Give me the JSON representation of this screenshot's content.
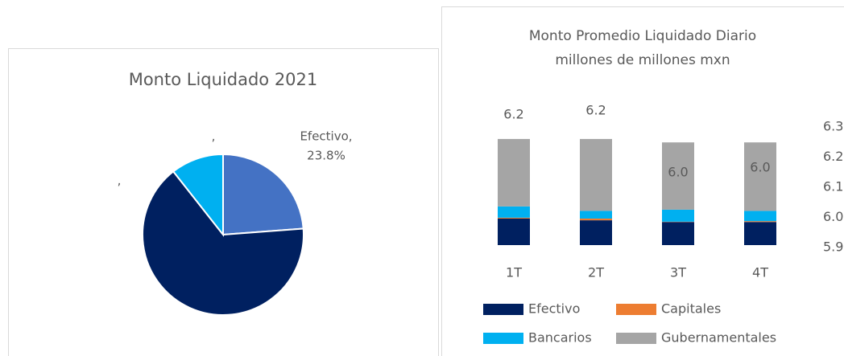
{
  "chart_data": [
    {
      "type": "pie",
      "title": "Monto Liquidado 2021",
      "categories": [
        "Efectivo",
        null,
        null
      ],
      "values": [
        23.8,
        65.6,
        10.6
      ],
      "value_labels": [
        [
          "Efectivo,",
          "23.8%"
        ],
        [
          ","
        ],
        [
          ","
        ]
      ],
      "colors": [
        "#4472c4",
        "#002060",
        "#00b0f0"
      ]
    },
    {
      "type": "stacked_bar",
      "title": [
        "Monto Promedio Liquidado Diario",
        "millones de millones mxn"
      ],
      "categories": [
        "1T",
        "2T",
        "3T",
        "4T"
      ],
      "series": [
        {
          "name": "Efectivo",
          "color": "#002060",
          "values": [
            1.55,
            1.45,
            1.35,
            1.35
          ]
        },
        {
          "name": "Capitales",
          "color": "#ed7d31",
          "values": [
            0.05,
            0.1,
            0.02,
            0.05
          ]
        },
        {
          "name": "Bancarios",
          "color": "#00b0f0",
          "values": [
            0.66,
            0.45,
            0.7,
            0.6
          ]
        },
        {
          "name": "Gubernamentales",
          "color": "#a5a5a5",
          "values": [
            3.94,
            4.2,
            3.93,
            4.0
          ]
        }
      ],
      "total_labels": [
        "6.2",
        "6.2",
        "6.0",
        "6.0"
      ],
      "ylim": [
        0,
        7
      ],
      "y2lim": [
        5.9,
        6.3
      ],
      "y2ticks": [
        5.9,
        {
          "value": 6,
          "label": "6.0"
        },
        6.1,
        6.2,
        6.3
      ]
    }
  ]
}
